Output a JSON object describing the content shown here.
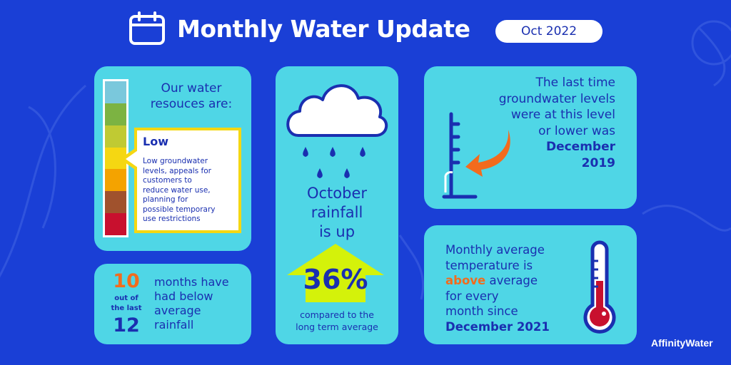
{
  "header": {
    "title": "Monthly Water Update",
    "date": "Oct 2022",
    "icon": "calendar-icon"
  },
  "resources": {
    "heading_line1": "Our water",
    "heading_line2": "resouces are:",
    "level": "Low",
    "description_lines": [
      "Low groundwater",
      "levels, appeals for",
      "customers to",
      "reduce water use,",
      "planning for",
      "possible temporary",
      "use restrictions"
    ],
    "scale_colors": [
      "#7ac8dc",
      "#7cb342",
      "#c0ca33",
      "#f5d712",
      "#f4a300",
      "#a0522d",
      "#c8102e"
    ]
  },
  "months": {
    "count": "10",
    "out_of_line1": "out of",
    "out_of_line2": "the last",
    "total": "12",
    "text_lines": [
      "months have",
      "had below",
      "average",
      "rainfall"
    ]
  },
  "rainfall": {
    "line1": "October",
    "line2": "rainfall",
    "line3": "is up",
    "percent": "36%",
    "compared_line1": "compared to the",
    "compared_line2": "long term average",
    "icon": "rain-cloud-icon"
  },
  "groundwater": {
    "lines": [
      "The last time",
      "groundwater levels",
      "were at this level",
      "or lower was"
    ],
    "month": "December",
    "year": "2019",
    "icon": "water-gauge-icon"
  },
  "temperature": {
    "line1": "Monthly average",
    "line2": "temperature is",
    "highlight": "above",
    "line3_rest": " average",
    "line4": "for every",
    "line5": "month since",
    "since": "December 2021",
    "icon": "thermometer-icon"
  },
  "brand": {
    "name": "AffinityWater"
  },
  "colors": {
    "background": "#1a3fd6",
    "card": "#4fd6e6",
    "text": "#1a2fb0",
    "accent_orange": "#f26b1d",
    "arrow_green": "#d4f20a"
  }
}
